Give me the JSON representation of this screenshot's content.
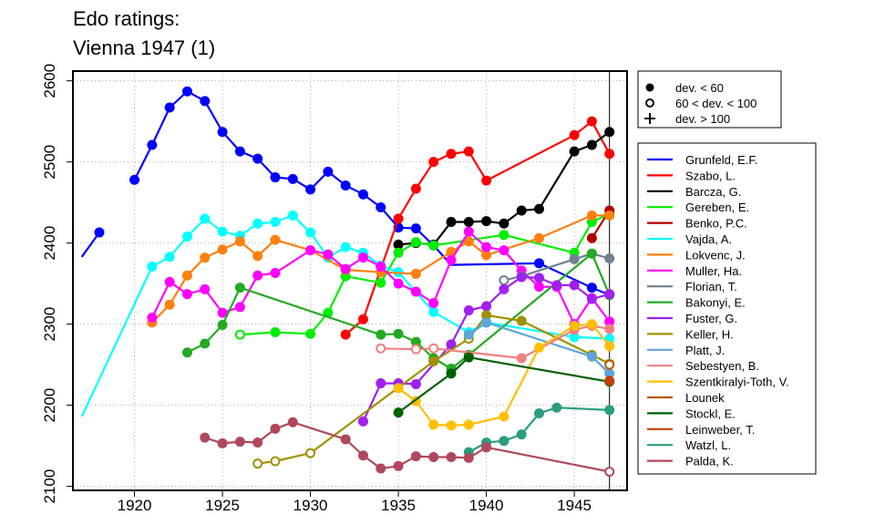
{
  "chart_data": {
    "type": "line",
    "title_lines": [
      "Edo ratings:",
      "Vienna 1947 (1)"
    ],
    "xlabel": "",
    "ylabel": "",
    "xlim": [
      1916.5,
      1948
    ],
    "ylim": [
      2095,
      2612
    ],
    "x_ticks": [
      1920,
      1925,
      1930,
      1935,
      1940,
      1945
    ],
    "y_ticks": [
      2100,
      2200,
      2300,
      2400,
      2500,
      2600
    ],
    "grid": "dotted",
    "vline_x": 1947,
    "marker_legend": [
      {
        "symbol": "filled-circle",
        "label": "dev. < 60"
      },
      {
        "symbol": "open-circle",
        "label": "60 < dev. < 100"
      },
      {
        "symbol": "plus",
        "label": "dev. > 100"
      }
    ],
    "series": [
      {
        "name": "Grunfeld, E.F.",
        "color": "#0000ff",
        "x": [
          1917,
          1918,
          1919,
          1920,
          1921,
          1922,
          1923,
          1924,
          1925,
          1926,
          1927,
          1928,
          1929,
          1930,
          1931,
          1932,
          1933,
          1934,
          1935,
          1936,
          1937,
          1938,
          1943,
          1946,
          1947
        ],
        "y": [
          2383,
          2413,
          null,
          2478,
          2521,
          2567,
          2587,
          2575,
          2537,
          2513,
          2504,
          2481,
          2479,
          2466,
          2488,
          2471,
          2460,
          2444,
          2419,
          2418,
          2397,
          2373,
          2375,
          2345,
          2336
        ],
        "m": [
          "n",
          "f",
          "n",
          "f",
          "f",
          "f",
          "f",
          "f",
          "f",
          "f",
          "f",
          "f",
          "f",
          "f",
          "f",
          "f",
          "f",
          "f",
          "f",
          "f",
          "f",
          "n",
          "f",
          "f",
          "f"
        ]
      },
      {
        "name": "Szabo, L.",
        "color": "#ff0000",
        "x": [
          1932,
          1933,
          1935,
          1936,
          1937,
          1938,
          1939,
          1940,
          1945,
          1946,
          1947
        ],
        "y": [
          2287,
          2306,
          2430,
          2467,
          2500,
          2510,
          2513,
          2477,
          2533,
          2550,
          2510
        ],
        "m": [
          "f",
          "f",
          "f",
          "f",
          "f",
          "f",
          "f",
          "f",
          "f",
          "f",
          "f"
        ]
      },
      {
        "name": "Barcza, G.",
        "color": "#000000",
        "x": [
          1935,
          1936,
          1937,
          1938,
          1939,
          1940,
          1941,
          1942,
          1943,
          1945,
          1946,
          1947
        ],
        "y": [
          2398,
          2400,
          2398,
          2426,
          2426,
          2427,
          2424,
          2440,
          2442,
          2513,
          2521,
          2537
        ],
        "m": [
          "f",
          "f",
          "f",
          "f",
          "f",
          "f",
          "f",
          "f",
          "f",
          "f",
          "f",
          "f"
        ]
      },
      {
        "name": "Gereben, E.",
        "color": "#00ee00",
        "x": [
          1926,
          1928,
          1930,
          1931,
          1932,
          1934,
          1935,
          1936,
          1937,
          1941,
          1945,
          1946,
          1947
        ],
        "y": [
          2287,
          2290,
          2288,
          2314,
          2359,
          2351,
          2388,
          2401,
          2397,
          2410,
          2388,
          2426,
          2436
        ],
        "m": [
          "o",
          "f",
          "f",
          "f",
          "f",
          "f",
          "f",
          "f",
          "f",
          "f",
          "f",
          "f",
          "f"
        ]
      },
      {
        "name": "Benko, P.C.",
        "color": "#b00000",
        "x": [
          1946,
          1947
        ],
        "y": [
          2406,
          2440
        ],
        "m": [
          "f",
          "f"
        ]
      },
      {
        "name": "Vajda, A.",
        "color": "#00ffff",
        "x": [
          1917,
          1921,
          1922,
          1923,
          1924,
          1925,
          1926,
          1927,
          1928,
          1929,
          1930,
          1931,
          1932,
          1933,
          1934,
          1935,
          1937,
          1939,
          1940,
          1945,
          1947
        ],
        "y": [
          2186,
          2371,
          2383,
          2408,
          2430,
          2414,
          2409,
          2424,
          2426,
          2434,
          2413,
          2382,
          2395,
          2388,
          2372,
          2364,
          2315,
          2290,
          2302,
          2284,
          2282
        ],
        "m": [
          "n",
          "f",
          "f",
          "f",
          "f",
          "f",
          "f",
          "f",
          "f",
          "f",
          "f",
          "f",
          "f",
          "f",
          "f",
          "f",
          "f",
          "f",
          "f",
          "f",
          "f"
        ]
      },
      {
        "name": "Lokvenc, J.",
        "color": "#ff7f0f",
        "x": [
          1921,
          1922,
          1923,
          1924,
          1925,
          1926,
          1927,
          1928,
          1930,
          1932,
          1934,
          1936,
          1938,
          1939,
          1940,
          1943,
          1946,
          1947
        ],
        "y": [
          2302,
          2324,
          2360,
          2382,
          2392,
          2402,
          2384,
          2404,
          2391,
          2367,
          2364,
          2362,
          2389,
          2402,
          2385,
          2406,
          2434,
          2434
        ],
        "m": [
          "f",
          "f",
          "f",
          "f",
          "f",
          "f",
          "f",
          "f",
          "f",
          "f",
          "f",
          "f",
          "f",
          "f",
          "f",
          "f",
          "f",
          "f"
        ]
      },
      {
        "name": "Muller, Ha.",
        "color": "#ff00ff",
        "x": [
          1921,
          1922,
          1923,
          1924,
          1925,
          1926,
          1927,
          1928,
          1930,
          1931,
          1932,
          1933,
          1934,
          1935,
          1936,
          1937,
          1938,
          1939,
          1940,
          1941,
          1942,
          1943,
          1944,
          1945,
          1946,
          1947
        ],
        "y": [
          2308,
          2352,
          2337,
          2343,
          2314,
          2321,
          2360,
          2363,
          2391,
          2386,
          2368,
          2382,
          2371,
          2350,
          2340,
          2326,
          2379,
          2414,
          2395,
          2391,
          2366,
          2346,
          2346,
          2300,
          2332,
          2303
        ],
        "m": [
          "f",
          "f",
          "f",
          "f",
          "f",
          "f",
          "f",
          "f",
          "f",
          "f",
          "f",
          "f",
          "f",
          "f",
          "f",
          "f",
          "f",
          "f",
          "f",
          "f",
          "f",
          "f",
          "f",
          "f",
          "f",
          "f"
        ]
      },
      {
        "name": "Florian, T.",
        "color": "#708090",
        "x": [
          1941,
          1942,
          1945,
          1946,
          1947
        ],
        "y": [
          2354,
          2359,
          2380,
          2387,
          2381
        ],
        "m": [
          "o",
          "f",
          "f",
          "f",
          "f"
        ]
      },
      {
        "name": "Bakonyi, E.",
        "color": "#22aa22",
        "x": [
          1923,
          1924,
          1925,
          1926,
          1934,
          1935,
          1936,
          1937,
          1938,
          1939,
          1946,
          1947
        ],
        "y": [
          2265,
          2276,
          2299,
          2345,
          2287,
          2288,
          2278,
          2258,
          2245,
          2262,
          2387,
          2336
        ],
        "m": [
          "f",
          "f",
          "f",
          "f",
          "f",
          "f",
          "f",
          "f",
          "f",
          "f",
          "f",
          "f"
        ]
      },
      {
        "name": "Fuster, G.",
        "color": "#a020f0",
        "x": [
          1933,
          1934,
          1935,
          1936,
          1938,
          1939,
          1940,
          1941,
          1942,
          1943,
          1944,
          1945,
          1946,
          1947
        ],
        "y": [
          2180,
          2227,
          2227,
          2226,
          2275,
          2317,
          2322,
          2343,
          2358,
          2357,
          2348,
          2348,
          2331,
          2337
        ],
        "m": [
          "f",
          "f",
          "f",
          "f",
          "f",
          "f",
          "f",
          "f",
          "f",
          "f",
          "f",
          "f",
          "f",
          "f"
        ]
      },
      {
        "name": "Keller, H.",
        "color": "#a09000",
        "x": [
          1927,
          1928,
          1930,
          1937,
          1939,
          1940,
          1942,
          1946,
          1947
        ],
        "y": [
          2128,
          2131,
          2141,
          2254,
          2282,
          2311,
          2304,
          2262,
          2251
        ],
        "m": [
          "o",
          "o",
          "o",
          "f",
          "o",
          "f",
          "f",
          "f",
          "f"
        ]
      },
      {
        "name": "Platt, J.",
        "color": "#5da5da",
        "x": [
          1939,
          1940,
          1946,
          1947
        ],
        "y": [
          2287,
          2302,
          2260,
          2239
        ],
        "m": [
          "f",
          "f",
          "f",
          "f"
        ]
      },
      {
        "name": "Sebestyen, B.",
        "color": "#f08080",
        "x": [
          1934,
          1936,
          1937,
          1942,
          1945,
          1946,
          1947
        ],
        "y": [
          2270,
          2269,
          2270,
          2258,
          2293,
          2298,
          2294
        ],
        "m": [
          "o",
          "o",
          "o",
          "f",
          "f",
          "f",
          "f"
        ]
      },
      {
        "name": "Szentkiralyi-Toth, V.",
        "color": "#ffbf00",
        "x": [
          1935,
          1936,
          1937,
          1938,
          1939,
          1941,
          1943,
          1945,
          1946,
          1947
        ],
        "y": [
          2221,
          2205,
          2176,
          2175,
          2176,
          2186,
          2271,
          2298,
          2300,
          2273
        ],
        "m": [
          "f",
          "f",
          "f",
          "f",
          "f",
          "f",
          "f",
          "f",
          "f",
          "f"
        ]
      },
      {
        "name": "Lounek",
        "color": "#b35900",
        "x": [
          1947
        ],
        "y": [
          2250
        ],
        "m": [
          "o"
        ]
      },
      {
        "name": "Stockl, E.",
        "color": "#006000",
        "x": [
          1935,
          1938,
          1939,
          1947
        ],
        "y": [
          2191,
          2239,
          2259,
          2229
        ],
        "m": [
          "f",
          "f",
          "f",
          "f"
        ]
      },
      {
        "name": "Leinweber, T.",
        "color": "#c04000",
        "x": [
          1947
        ],
        "y": [
          2230
        ],
        "m": [
          "f"
        ]
      },
      {
        "name": "Watzl, L.",
        "color": "#2a9d7f",
        "x": [
          1939,
          1940,
          1941,
          1942,
          1943,
          1944,
          1947
        ],
        "y": [
          2142,
          2154,
          2156,
          2164,
          2190,
          2197,
          2194
        ],
        "m": [
          "f",
          "f",
          "f",
          "f",
          "f",
          "f",
          "f"
        ]
      },
      {
        "name": "Palda, K.",
        "color": "#b0485a",
        "x": [
          1924,
          1925,
          1926,
          1927,
          1928,
          1929,
          1932,
          1933,
          1934,
          1935,
          1936,
          1937,
          1938,
          1939,
          1940,
          1947
        ],
        "y": [
          2160,
          2153,
          2155,
          2154,
          2171,
          2179,
          2158,
          2138,
          2122,
          2125,
          2137,
          2136,
          2136,
          2135,
          2148,
          2118
        ],
        "m": [
          "f",
          "f",
          "f",
          "f",
          "f",
          "f",
          "f",
          "f",
          "f",
          "f",
          "f",
          "f",
          "f",
          "f",
          "f",
          "o"
        ]
      }
    ]
  }
}
